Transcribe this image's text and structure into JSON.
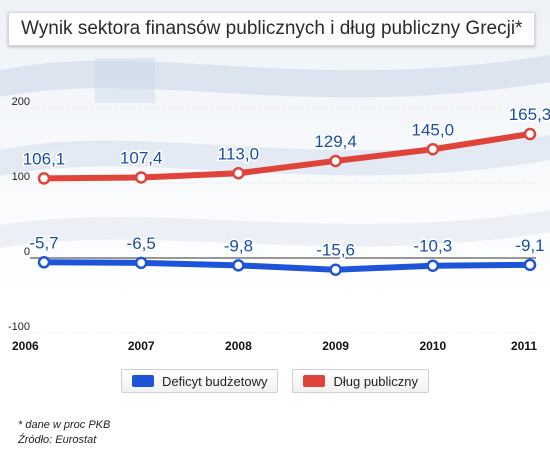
{
  "title": "Wynik sektora finansów publicznych i dług publiczny Grecji*",
  "footnotes": {
    "note": "* dane w proc PKB",
    "source": "Źródło: Eurostat"
  },
  "legend": [
    {
      "label": "Deficyt budżetowy",
      "color": "#1e55d8"
    },
    {
      "label": "Dług publiczny",
      "color": "#e0433a"
    }
  ],
  "chart_data": {
    "type": "line",
    "x": [
      "2006",
      "2007",
      "2008",
      "2009",
      "2010",
      "2011"
    ],
    "ylim": [
      -100,
      200
    ],
    "yticks": [
      "200",
      "100",
      "0",
      "-100"
    ],
    "series": [
      {
        "name": "Deficyt budżetowy",
        "color": "#1e55d8",
        "values": [
          -5.7,
          -6.5,
          -9.8,
          -15.6,
          -10.3,
          -9.1
        ],
        "labels": [
          "-5,7",
          "-6,5",
          "-9,8",
          "-15,6",
          "-10,3",
          "-9,1"
        ]
      },
      {
        "name": "Dług publiczny",
        "color": "#e0433a",
        "values": [
          106.1,
          107.4,
          113.0,
          129.4,
          145.0,
          165.3
        ],
        "labels": [
          "106,1",
          "107,4",
          "113,0",
          "129,4",
          "145,0",
          "165,3"
        ]
      }
    ]
  }
}
